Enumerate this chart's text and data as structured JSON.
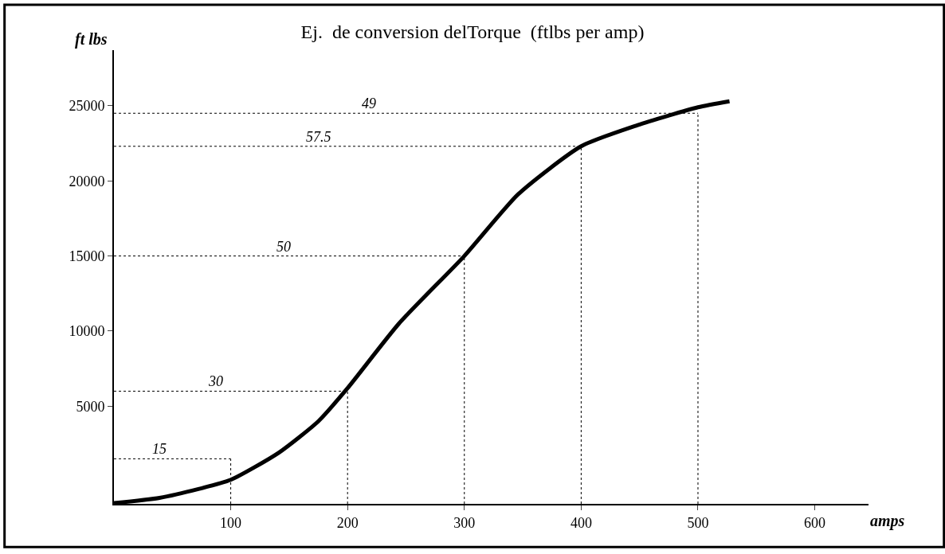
{
  "chart_data": {
    "type": "line",
    "title": "Ej.  de conversion delTorque  (ftlbs per amp)",
    "xlabel": "amps",
    "ylabel": "ft lbs",
    "x": [
      0,
      39,
      73,
      100,
      141,
      175,
      200,
      244,
      300,
      346,
      400,
      448,
      500,
      527
    ],
    "series": [
      {
        "color": "#000000",
        "values": [
          -1450,
          -1100,
          -500,
          100,
          1900,
          4000,
          6200,
          10500,
          15000,
          19100,
          22300,
          23700,
          24900,
          25300
        ]
      }
    ],
    "xlim": [
      0,
      646
    ],
    "xticks": [
      100,
      200,
      300,
      400,
      500,
      600
    ],
    "ylim": [
      -1500,
      28700
    ],
    "yticks": [
      5000,
      10000,
      15000,
      20000,
      25000
    ],
    "annotations": [
      {
        "text": "15",
        "x": 39,
        "y": 1500
      },
      {
        "text": "30",
        "x": 87,
        "y": 6000
      },
      {
        "text": "50",
        "x": 145,
        "y": 15000
      },
      {
        "text": "57.5",
        "x": 175,
        "y": 22300
      },
      {
        "text": "49",
        "x": 218,
        "y": 24500
      }
    ],
    "ref_lines": [
      {
        "axis": "y",
        "value": 1500,
        "label": null,
        "line_style": "dotted"
      },
      {
        "axis": "y",
        "value": 6000,
        "label": null,
        "line_style": "dotted"
      },
      {
        "axis": "y",
        "value": 15000,
        "label": null,
        "line_style": "dotted"
      },
      {
        "axis": "y",
        "value": 22300,
        "label": null,
        "line_style": "dotted"
      },
      {
        "axis": "y",
        "value": 24500,
        "label": null,
        "line_style": "dotted"
      },
      {
        "axis": "x",
        "value": 100,
        "label": null,
        "line_style": "dotted"
      },
      {
        "axis": "x",
        "value": 200,
        "label": null,
        "line_style": "dotted"
      },
      {
        "axis": "x",
        "value": 300,
        "label": null,
        "line_style": "dotted"
      },
      {
        "axis": "x",
        "value": 400,
        "label": null,
        "line_style": "dotted"
      },
      {
        "axis": "x",
        "value": 500,
        "label": null,
        "line_style": "dotted"
      }
    ],
    "marker": "none",
    "line_style": "solid"
  }
}
